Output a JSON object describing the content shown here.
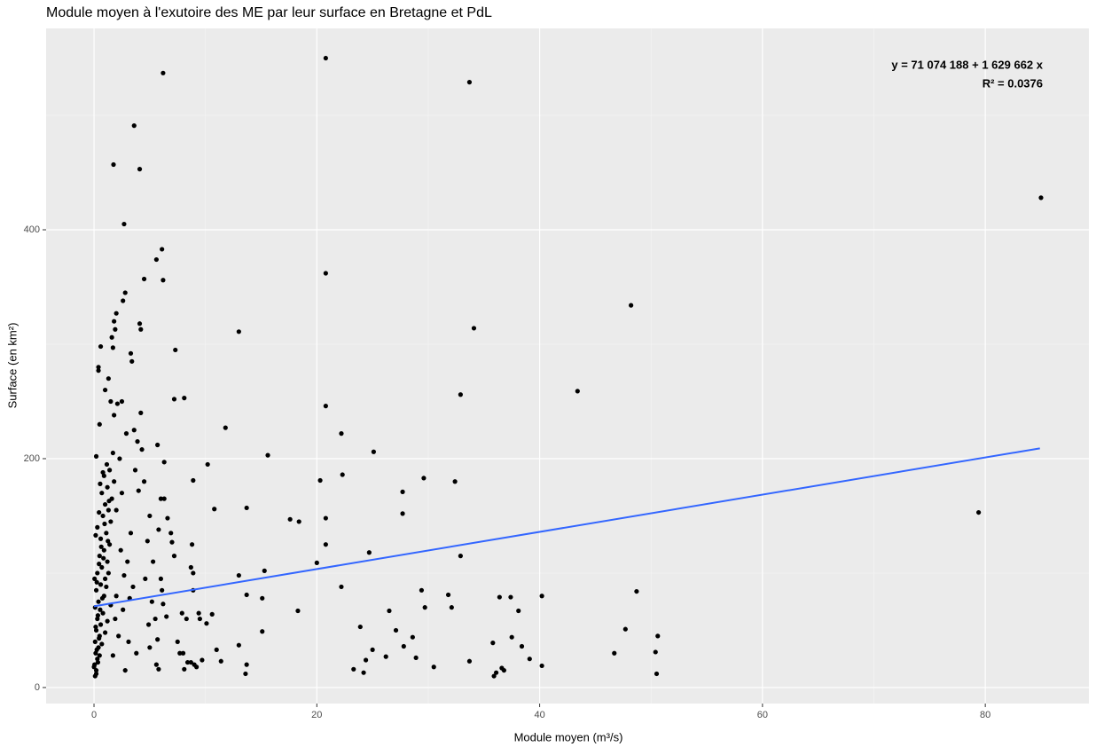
{
  "chart_data": {
    "type": "scatter",
    "title": "Module moyen à l'exutoire des ME par leur surface en Bretagne et PdL",
    "x_label": "Module moyen (m³/s)",
    "y_label": "Surface (en km²)",
    "annotations": [
      "y = 71 074 188 + 1 629 662 x",
      "R² = 0.0376"
    ],
    "xlim": [
      -4.3,
      89.3
    ],
    "ylim": [
      -14,
      576
    ],
    "xticks": [
      0,
      20,
      40,
      60,
      80
    ],
    "yticks": [
      0,
      200,
      400
    ],
    "minor_xticks": [
      10,
      30,
      50,
      70
    ],
    "minor_yticks": [
      100,
      300,
      500
    ],
    "grid": true,
    "background": "#ebebeb",
    "color": "#000000",
    "trend": {
      "color": "#3366ff",
      "x": [
        0,
        84.9
      ],
      "y": [
        71,
        209
      ]
    },
    "x": [
      6.2,
      20.8,
      33.7,
      3.6,
      1.75,
      4.1,
      2.7,
      85.0,
      6.1,
      5.6,
      6.2,
      4.5,
      20.8,
      48.2,
      13.0,
      34.1,
      7.3,
      43.4,
      32.9,
      8.1,
      7.2,
      20.8,
      11.8,
      22.2,
      15.6,
      25.1,
      5.7,
      10.2,
      6.3,
      29.6,
      32.4,
      20.3,
      22.3,
      27.7,
      8.9,
      10.8,
      13.7,
      79.4,
      27.7,
      20.8,
      17.6,
      18.4,
      20.8,
      32.9,
      24.7,
      20.0,
      15.3,
      13.0,
      22.2,
      8.9,
      29.4,
      48.7,
      36.4,
      37.4,
      40.2,
      31.8,
      13.7,
      15.1,
      38.1,
      26.5,
      18.3,
      29.7,
      32.1,
      10.6,
      9.5,
      10.1,
      47.7,
      23.9,
      27.1,
      15.1,
      50.6,
      28.6,
      37.5,
      35.8,
      38.4,
      13.0,
      25.0,
      27.8,
      46.7,
      50.4,
      11.0,
      28.9,
      26.2,
      24.4,
      33.7,
      39.1,
      40.2,
      30.5,
      23.3,
      24.2,
      13.7,
      13.6,
      50.5,
      35.9,
      36.6,
      36.8,
      36.1,
      11.4,
      9.7,
      8.7,
      8.1,
      5.8,
      0.1,
      0.2,
      0.05,
      0.3,
      0.15,
      0.4,
      0.1,
      0.5,
      0.2,
      0.6,
      0.3,
      0.8,
      0.1,
      0.4,
      0.9,
      0.2,
      0.6,
      1.0,
      0.3,
      0.7,
      1.2,
      0.5,
      0.9,
      1.4,
      0.6,
      1.1,
      0.3,
      1.5,
      0.8,
      1.3,
      1.0,
      1.6,
      0.7,
      1.2,
      1.8,
      0.9,
      1.4,
      0.2,
      1.7,
      0.5,
      1.8,
      1.5,
      2.1,
      2.5,
      0.4,
      0.4,
      1.3,
      0.6,
      1.6,
      2.0,
      2.6,
      2.8,
      1.8,
      1.9,
      1.7,
      0.8,
      0.2,
      0.0,
      0.35,
      0.5,
      0.25,
      0.7,
      0.45,
      1.0,
      0.15,
      1.2,
      0.35,
      0.55,
      1.5,
      0.75,
      0.05,
      1.1,
      0.25,
      0.45,
      0.85,
      0.65,
      1.25,
      0.15,
      0.95,
      0.45,
      1.35,
      0.55,
      1.15,
      1.3,
      1.7,
      2.2,
      2.0,
      1.9,
      2.4,
      2.7,
      3.0,
      3.3,
      2.6,
      3.5,
      3.1,
      2.8,
      3.8,
      4.0,
      4.3,
      3.6,
      3.9,
      4.2,
      3.4,
      3.3,
      2.9,
      4.1,
      4.2,
      4.8,
      5.0,
      4.6,
      5.2,
      5.5,
      5.0,
      5.7,
      6.0,
      6.3,
      6.0,
      5.8,
      6.6,
      7.0,
      7.2,
      6.1,
      6.5,
      7.5,
      7.9,
      8.3,
      8.7,
      8.9,
      8.8,
      7.7,
      8.4,
      9.2,
      9.4,
      2.3,
      3.7,
      4.5,
      1.0,
      5.3,
      6.9,
      8.0,
      9.0,
      2.0,
      2.5,
      3.2,
      4.9,
      5.6,
      6.2
    ],
    "values": [
      537,
      550,
      529,
      491,
      457,
      453,
      405,
      428,
      383,
      374,
      356,
      357,
      362,
      334,
      311,
      314,
      295,
      259,
      256,
      253,
      252,
      246,
      227,
      222,
      203,
      206,
      212,
      195,
      197,
      183,
      180,
      181,
      186,
      171,
      181,
      156,
      157,
      153,
      152,
      148,
      147,
      145,
      125,
      115,
      118,
      109,
      102,
      98,
      88,
      85,
      85,
      84,
      79,
      79,
      80,
      81,
      81,
      78,
      67,
      67,
      67,
      70,
      70,
      64,
      60,
      56,
      51,
      53,
      50,
      49,
      45,
      44,
      44,
      39,
      36,
      37,
      33,
      36,
      30,
      31,
      33,
      26,
      27,
      24,
      23,
      25,
      19,
      18,
      16,
      13,
      20,
      12,
      12,
      10,
      17,
      15,
      13,
      23,
      24,
      22,
      16,
      16,
      10,
      15,
      20,
      25,
      30,
      35,
      40,
      45,
      50,
      55,
      60,
      65,
      70,
      75,
      80,
      85,
      90,
      95,
      100,
      105,
      110,
      115,
      120,
      125,
      130,
      135,
      140,
      145,
      150,
      155,
      160,
      165,
      170,
      175,
      180,
      185,
      190,
      202,
      205,
      230,
      238,
      250,
      248,
      250,
      277,
      280,
      270,
      298,
      306,
      327,
      338,
      345,
      320,
      313,
      297,
      188,
      12,
      18,
      22,
      28,
      33,
      38,
      43,
      48,
      53,
      58,
      63,
      68,
      72,
      78,
      95,
      88,
      92,
      108,
      113,
      123,
      128,
      133,
      143,
      153,
      163,
      178,
      195,
      100,
      28,
      45,
      80,
      60,
      120,
      98,
      110,
      135,
      68,
      88,
      40,
      15,
      30,
      172,
      208,
      225,
      215,
      240,
      285,
      292,
      222,
      318,
      313,
      128,
      150,
      95,
      75,
      60,
      35,
      42,
      95,
      165,
      165,
      138,
      148,
      127,
      115,
      85,
      62,
      40,
      65,
      60,
      105,
      100,
      125,
      30,
      22,
      18,
      65,
      200,
      190,
      180,
      260,
      110,
      135,
      30,
      20,
      155,
      170,
      78,
      55,
      20,
      73
    ]
  }
}
